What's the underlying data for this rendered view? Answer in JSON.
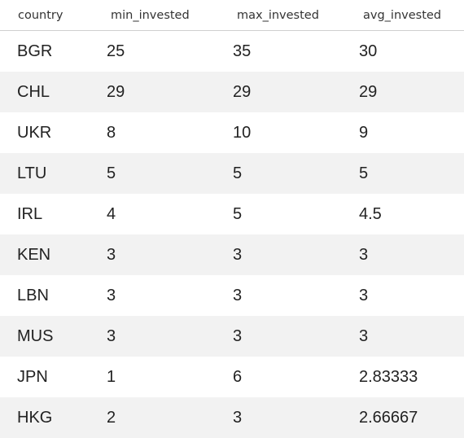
{
  "table": {
    "columns": [
      "country",
      "min_invested",
      "max_invested",
      "avg_invested"
    ],
    "rows": [
      [
        "BGR",
        "25",
        "35",
        "30"
      ],
      [
        "CHL",
        "29",
        "29",
        "29"
      ],
      [
        "UKR",
        "8",
        "10",
        "9"
      ],
      [
        "LTU",
        "5",
        "5",
        "5"
      ],
      [
        "IRL",
        "4",
        "5",
        "4.5"
      ],
      [
        "KEN",
        "3",
        "3",
        "3"
      ],
      [
        "LBN",
        "3",
        "3",
        "3"
      ],
      [
        "MUS",
        "3",
        "3",
        "3"
      ],
      [
        "JPN",
        "1",
        "6",
        "2.83333"
      ],
      [
        "HKG",
        "2",
        "3",
        "2.66667"
      ]
    ]
  }
}
